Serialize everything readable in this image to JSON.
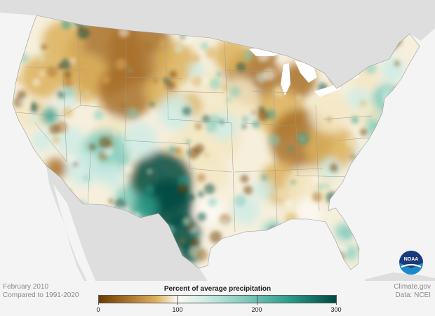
{
  "footer": {
    "date_label": "February 2010",
    "baseline_label": "Compared to 1991-2020",
    "credit": "Climate.gov",
    "source": "Data: NCEI"
  },
  "legend": {
    "title": "Percent of average precipitation",
    "ticks": [
      "0",
      "100",
      "200",
      "300"
    ],
    "colors": [
      "#6b3c00",
      "#a9712a",
      "#dcb15c",
      "#f3e7c4",
      "#fbfaf4",
      "#cfece6",
      "#7fcbbb",
      "#2c9c8a",
      "#004a40"
    ]
  },
  "logo": {
    "text": "NOAA",
    "icon": "noaa-logo-icon",
    "colors": [
      "#1a3a7a",
      "#1d88c9"
    ]
  },
  "colors": {
    "background": "#f4f4f4",
    "land_outside": "#dedede",
    "water": "#ffffff",
    "state_border": "#9a9a9a"
  }
}
